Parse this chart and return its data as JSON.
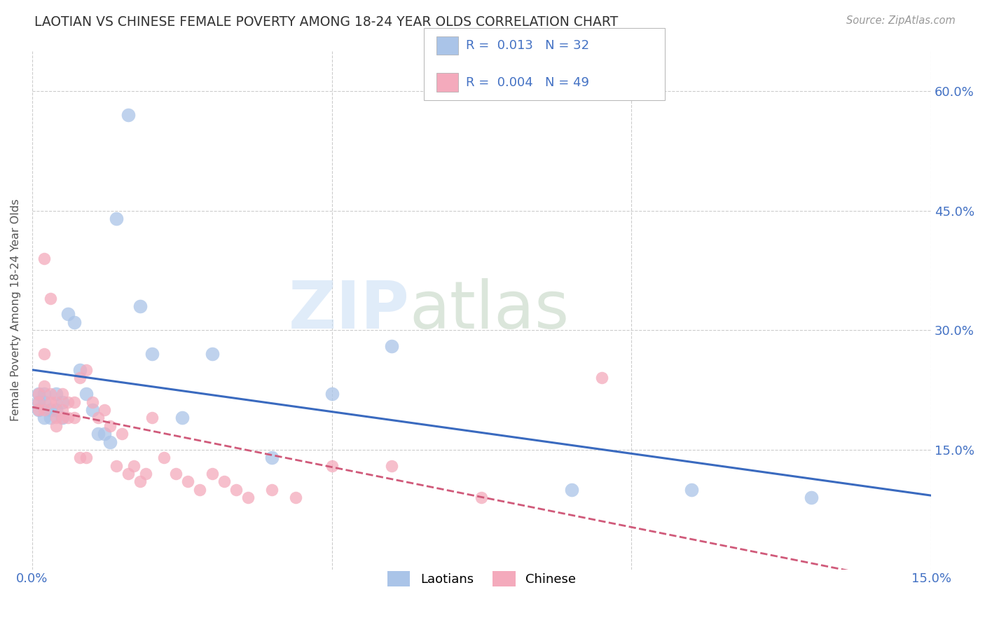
{
  "title": "LAOTIAN VS CHINESE FEMALE POVERTY AMONG 18-24 YEAR OLDS CORRELATION CHART",
  "source": "Source: ZipAtlas.com",
  "ylabel": "Female Poverty Among 18-24 Year Olds",
  "xlim": [
    0.0,
    0.15
  ],
  "ylim": [
    0.0,
    0.65
  ],
  "xticks": [
    0.0,
    0.05,
    0.1,
    0.15
  ],
  "xtick_labels": [
    "0.0%",
    "",
    "",
    "15.0%"
  ],
  "yticks_right": [
    0.15,
    0.3,
    0.45,
    0.6
  ],
  "ytick_labels_right": [
    "15.0%",
    "30.0%",
    "45.0%",
    "60.0%"
  ],
  "grid_color": "#cccccc",
  "background_color": "#ffffff",
  "watermark_zip": "ZIP",
  "watermark_atlas": "atlas",
  "laotian_color": "#aac4e8",
  "chinese_color": "#f4aabc",
  "laotian_R": "0.013",
  "laotian_N": "32",
  "chinese_R": "0.004",
  "chinese_N": "49",
  "laotian_line_color": "#3a6abf",
  "chinese_line_color": "#d05a7a",
  "laotian_x": [
    0.001,
    0.001,
    0.001,
    0.002,
    0.002,
    0.002,
    0.003,
    0.003,
    0.004,
    0.004,
    0.005,
    0.005,
    0.006,
    0.007,
    0.008,
    0.009,
    0.01,
    0.011,
    0.012,
    0.013,
    0.014,
    0.016,
    0.018,
    0.02,
    0.025,
    0.03,
    0.04,
    0.05,
    0.06,
    0.09,
    0.11,
    0.13
  ],
  "laotian_y": [
    0.22,
    0.21,
    0.2,
    0.22,
    0.21,
    0.19,
    0.2,
    0.19,
    0.22,
    0.2,
    0.21,
    0.19,
    0.32,
    0.31,
    0.25,
    0.22,
    0.2,
    0.17,
    0.17,
    0.16,
    0.44,
    0.57,
    0.33,
    0.27,
    0.19,
    0.27,
    0.14,
    0.22,
    0.28,
    0.1,
    0.1,
    0.09
  ],
  "chinese_x": [
    0.001,
    0.001,
    0.001,
    0.002,
    0.002,
    0.002,
    0.002,
    0.003,
    0.003,
    0.003,
    0.004,
    0.004,
    0.004,
    0.005,
    0.005,
    0.005,
    0.006,
    0.006,
    0.007,
    0.007,
    0.008,
    0.008,
    0.009,
    0.009,
    0.01,
    0.011,
    0.012,
    0.013,
    0.014,
    0.015,
    0.016,
    0.017,
    0.018,
    0.019,
    0.02,
    0.022,
    0.024,
    0.026,
    0.028,
    0.03,
    0.032,
    0.034,
    0.036,
    0.04,
    0.044,
    0.05,
    0.06,
    0.075,
    0.095
  ],
  "chinese_y": [
    0.22,
    0.21,
    0.2,
    0.39,
    0.27,
    0.23,
    0.2,
    0.34,
    0.22,
    0.21,
    0.21,
    0.19,
    0.18,
    0.22,
    0.2,
    0.19,
    0.21,
    0.19,
    0.21,
    0.19,
    0.24,
    0.14,
    0.25,
    0.14,
    0.21,
    0.19,
    0.2,
    0.18,
    0.13,
    0.17,
    0.12,
    0.13,
    0.11,
    0.12,
    0.19,
    0.14,
    0.12,
    0.11,
    0.1,
    0.12,
    0.11,
    0.1,
    0.09,
    0.1,
    0.09,
    0.13,
    0.13,
    0.09,
    0.24
  ]
}
